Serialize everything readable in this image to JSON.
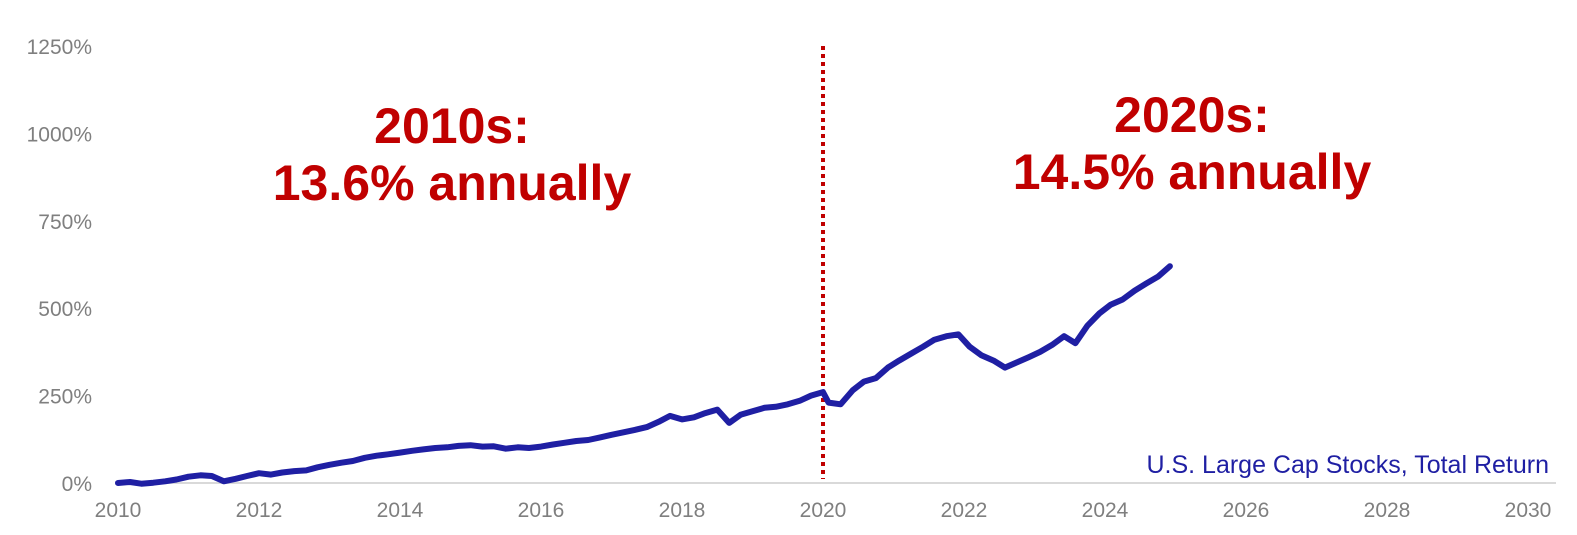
{
  "colors": {
    "series": "#1f1fa3",
    "annotation": "#c00000",
    "divider": "#c00000",
    "axis_text": "#7f7f7f",
    "axis_line": "#d9d9d9"
  },
  "chart_data": {
    "type": "line",
    "title": "",
    "xlabel": "",
    "ylabel": "",
    "xlim": [
      2010,
      2030
    ],
    "ylim": [
      0,
      1250
    ],
    "x_ticks": [
      {
        "value": 2010,
        "label": "2010"
      },
      {
        "value": 2012,
        "label": "2012"
      },
      {
        "value": 2014,
        "label": "2014"
      },
      {
        "value": 2016,
        "label": "2016"
      },
      {
        "value": 2018,
        "label": "2018"
      },
      {
        "value": 2020,
        "label": "2020"
      },
      {
        "value": 2022,
        "label": "2022"
      },
      {
        "value": 2024,
        "label": "2024"
      },
      {
        "value": 2026,
        "label": "2026"
      },
      {
        "value": 2028,
        "label": "2028"
      },
      {
        "value": 2030,
        "label": "2030"
      }
    ],
    "y_ticks": [
      {
        "value": 0,
        "label": "0%"
      },
      {
        "value": 250,
        "label": "250%"
      },
      {
        "value": 500,
        "label": "500%"
      },
      {
        "value": 750,
        "label": "750%"
      },
      {
        "value": 1000,
        "label": "1000%"
      },
      {
        "value": 1250,
        "label": "1250%"
      }
    ],
    "grid": false,
    "series": [
      {
        "name": "U.S. Large Cap Stocks, Total Return",
        "x": [
          2010.0,
          2010.17,
          2010.33,
          2010.5,
          2010.67,
          2010.83,
          2011.0,
          2011.17,
          2011.33,
          2011.5,
          2011.67,
          2011.83,
          2012.0,
          2012.17,
          2012.33,
          2012.5,
          2012.67,
          2012.83,
          2013.0,
          2013.17,
          2013.33,
          2013.5,
          2013.67,
          2013.83,
          2014.0,
          2014.17,
          2014.33,
          2014.5,
          2014.67,
          2014.83,
          2015.0,
          2015.17,
          2015.33,
          2015.5,
          2015.67,
          2015.83,
          2016.0,
          2016.17,
          2016.33,
          2016.5,
          2016.67,
          2016.83,
          2017.0,
          2017.17,
          2017.33,
          2017.5,
          2017.67,
          2017.83,
          2018.0,
          2018.17,
          2018.33,
          2018.5,
          2018.67,
          2018.83,
          2019.0,
          2019.17,
          2019.33,
          2019.5,
          2019.67,
          2019.83,
          2020.0,
          2020.08,
          2020.25,
          2020.42,
          2020.58,
          2020.75,
          2020.92,
          2021.08,
          2021.25,
          2021.42,
          2021.58,
          2021.75,
          2021.92,
          2022.08,
          2022.25,
          2022.42,
          2022.58,
          2022.75,
          2022.92,
          2023.08,
          2023.25,
          2023.42,
          2023.58,
          2023.75,
          2023.92,
          2024.08,
          2024.25,
          2024.42,
          2024.58,
          2024.75,
          2024.92
        ],
        "values": [
          0,
          3,
          -2,
          1,
          5,
          10,
          18,
          22,
          20,
          5,
          12,
          20,
          28,
          24,
          30,
          34,
          36,
          45,
          52,
          58,
          63,
          72,
          78,
          82,
          87,
          92,
          96,
          100,
          102,
          106,
          108,
          104,
          105,
          98,
          102,
          100,
          104,
          110,
          115,
          120,
          123,
          130,
          138,
          145,
          152,
          160,
          175,
          192,
          182,
          188,
          200,
          210,
          172,
          195,
          205,
          215,
          218,
          225,
          235,
          250,
          260,
          230,
          225,
          265,
          290,
          300,
          330,
          350,
          370,
          390,
          410,
          420,
          425,
          390,
          365,
          350,
          330,
          345,
          360,
          375,
          395,
          420,
          400,
          450,
          485,
          510,
          525,
          550,
          570,
          590,
          620
        ]
      }
    ],
    "divider": {
      "x": 2020
    },
    "annotations": [
      {
        "line1": "2010s:",
        "line2": "13.6% annually"
      },
      {
        "line1": "2020s:",
        "line2": "14.5% annually"
      }
    ],
    "series_label": "U.S. Large Cap Stocks, Total Return"
  }
}
